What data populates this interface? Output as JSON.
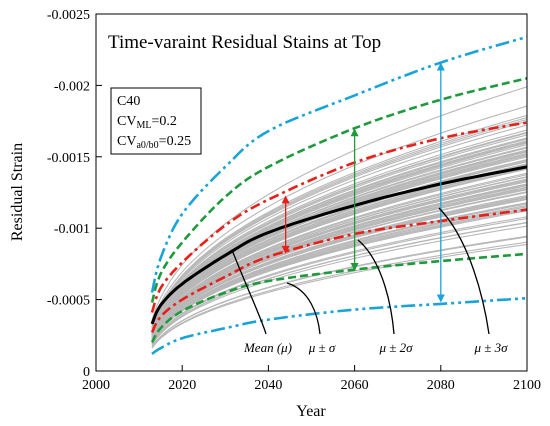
{
  "chart_data": {
    "type": "line",
    "title": "Time-varaint  Residual Stains at Top",
    "xlabel": "Year",
    "ylabel": "Residual Strain",
    "xlim": [
      2000,
      2100
    ],
    "ylim": [
      0,
      -0.0025
    ],
    "y_axis_inverted": true,
    "x_ticks": [
      2000,
      2020,
      2040,
      2060,
      2080,
      2100
    ],
    "x_tick_labels": [
      "2000",
      "2020",
      "2040",
      "2060",
      "2080",
      "2100"
    ],
    "y_ticks": [
      0,
      -0.0005,
      -0.001,
      -0.0015,
      -0.002,
      -0.0025
    ],
    "y_tick_labels": [
      "0",
      "-0.0005",
      "-0.001",
      "-0.0015",
      "-0.002",
      "-0.0025"
    ],
    "grid": false,
    "parameters_box": {
      "line1": "C40",
      "line2_main": "CV",
      "line2_sub": "ML",
      "line2_rest": "=0.2",
      "line3_main": "CV",
      "line3_sub": "a0/b0",
      "line3_rest": "=0.25"
    },
    "x": [
      2013,
      2015,
      2020,
      2030,
      2040,
      2060,
      2080,
      2100
    ],
    "series": [
      {
        "role": "mean",
        "color": "#000000",
        "values": [
          -0.00033,
          -0.00046,
          -0.00061,
          -0.00081,
          -0.00097,
          -0.00116,
          -0.00131,
          -0.00143
        ]
      },
      {
        "role": "plus_1sigma",
        "color": "#e8201a",
        "values": [
          -0.00041,
          -0.00058,
          -0.00076,
          -0.00102,
          -0.0012,
          -0.00146,
          -0.00163,
          -0.00174
        ]
      },
      {
        "role": "minus_1sigma",
        "color": "#e8201a",
        "values": [
          -0.00027,
          -0.00038,
          -0.0005,
          -0.00066,
          -0.0008,
          -0.00096,
          -0.00105,
          -0.00113
        ]
      },
      {
        "role": "plus_2sigma",
        "color": "#1e9a3c",
        "values": [
          -0.00048,
          -0.00068,
          -0.0009,
          -0.00122,
          -0.00143,
          -0.0017,
          -0.0019,
          -0.00205
        ]
      },
      {
        "role": "minus_2sigma",
        "color": "#1e9a3c",
        "values": [
          -0.0002,
          -0.0003,
          -0.00042,
          -0.00055,
          -0.00063,
          -0.00071,
          -0.00077,
          -0.00082
        ]
      },
      {
        "role": "plus_3sigma",
        "color": "#1aa3d9",
        "values": [
          -0.00055,
          -0.00079,
          -0.0011,
          -0.00143,
          -0.00168,
          -0.00193,
          -0.00216,
          -0.00234
        ]
      },
      {
        "role": "minus_3sigma",
        "color": "#1aa3d9",
        "values": [
          -0.00012,
          -0.00016,
          -0.00023,
          -0.0003,
          -0.00036,
          -0.00043,
          -0.00047,
          -0.00051
        ]
      }
    ],
    "sample_curves_color": "#b8b8b8",
    "annotations": [
      {
        "label": "Mean (μ)",
        "series_role": "mean"
      },
      {
        "label": "μ ± σ",
        "series_role": "plus_1sigma"
      },
      {
        "label": "μ ± 2σ",
        "series_role": "plus_2sigma"
      },
      {
        "label": "μ ± 3σ",
        "series_role": "plus_3sigma"
      }
    ],
    "band_arrows": [
      {
        "role": "sigma1",
        "x": 2044,
        "from": -0.00082,
        "to": -0.00123,
        "color": "#e8201a"
      },
      {
        "role": "sigma2",
        "x": 2060,
        "from": -0.0007,
        "to": -0.0017,
        "color": "#1e9a3c"
      },
      {
        "role": "sigma3",
        "x": 2080,
        "from": -0.00048,
        "to": -0.00216,
        "color": "#1aa3d9"
      }
    ]
  }
}
